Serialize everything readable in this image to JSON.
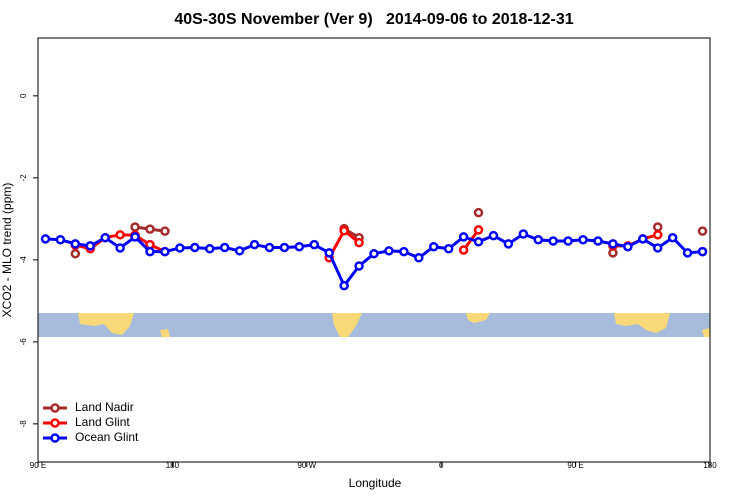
{
  "chart_data": {
    "type": "line",
    "title": "40S-30S November (Ver 9)   2014-09-06 to 2018-12-31",
    "x_label": "Longitude",
    "y_label": "XCO2 - MLO trend (ppm)",
    "x": [
      95,
      105,
      115,
      125,
      135,
      145,
      155,
      165,
      175,
      185,
      195,
      205,
      215,
      225,
      235,
      245,
      255,
      265,
      275,
      285,
      295,
      305,
      315,
      325,
      335,
      345,
      355,
      365,
      375,
      385,
      395,
      405,
      415,
      425,
      435,
      445,
      455,
      465,
      475,
      485,
      495,
      505,
      515,
      525,
      535
    ],
    "xlim": [
      90,
      540
    ],
    "xticks": [
      {
        "value": 90,
        "label": "90 E"
      },
      180,
      {
        "value": 270,
        "label": "90 W"
      },
      {
        "value": 360,
        "label": "0"
      },
      {
        "value": 450,
        "label": "90 E"
      },
      {
        "value": 540,
        "label": "180"
      }
    ],
    "ylim": [
      -8.93,
      1.41
    ],
    "yticks": [
      0,
      -2,
      -4,
      -6,
      -8
    ],
    "legend": "bottom-left",
    "series": [
      {
        "name": "Land Nadir",
        "color": "#a52a2a",
        "values": [
          null,
          null,
          -3.85,
          null,
          null,
          null,
          -3.2,
          -3.25,
          -3.3,
          null,
          null,
          null,
          null,
          null,
          null,
          null,
          null,
          null,
          null,
          null,
          -3.24,
          -3.46,
          null,
          null,
          null,
          null,
          null,
          null,
          null,
          -2.85,
          null,
          null,
          null,
          null,
          null,
          null,
          null,
          null,
          -3.83,
          null,
          null,
          -3.2,
          null,
          null,
          -3.3
        ]
      },
      {
        "name": "Land Glint",
        "color": "#ff0000",
        "values": [
          null,
          null,
          -3.64,
          -3.73,
          -3.46,
          -3.39,
          -3.4,
          -3.63,
          -3.8,
          null,
          null,
          null,
          null,
          null,
          null,
          null,
          null,
          null,
          null,
          -3.95,
          -3.29,
          -3.58,
          null,
          null,
          null,
          null,
          null,
          null,
          -3.76,
          -3.27,
          null,
          null,
          null,
          null,
          null,
          null,
          null,
          null,
          -3.66,
          -3.66,
          -3.49,
          -3.39,
          null,
          null,
          -3.8
        ]
      },
      {
        "name": "Ocean Glint",
        "color": "#0000ff",
        "values": [
          -3.49,
          -3.51,
          -3.61,
          -3.66,
          -3.46,
          -3.71,
          -3.44,
          -3.8,
          -3.8,
          -3.71,
          -3.7,
          -3.73,
          -3.7,
          -3.78,
          -3.63,
          -3.7,
          -3.7,
          -3.68,
          -3.63,
          -3.83,
          -4.63,
          -4.15,
          -3.85,
          -3.78,
          -3.8,
          -3.95,
          -3.68,
          -3.73,
          -3.44,
          -3.56,
          -3.41,
          -3.61,
          -3.37,
          -3.51,
          -3.54,
          -3.54,
          -3.51,
          -3.54,
          -3.61,
          -3.68,
          -3.49,
          -3.71,
          -3.46,
          -3.83,
          -3.8
        ]
      }
    ]
  }
}
